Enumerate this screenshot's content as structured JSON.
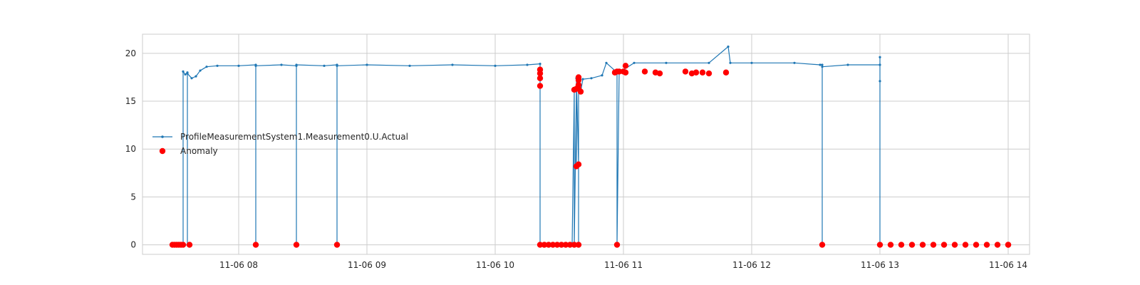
{
  "chart_data": {
    "type": "line",
    "x_axis": {
      "kind": "time",
      "ticks": [
        "2020-11-06T08:00",
        "2020-11-06T09:00",
        "2020-11-06T10:00",
        "2020-11-06T11:00",
        "2020-11-06T12:00",
        "2020-11-06T13:00",
        "2020-11-06T14:00"
      ],
      "tick_labels": [
        "11-06 08",
        "11-06 09",
        "11-06 10",
        "11-06 11",
        "11-06 12",
        "11-06 13",
        "11-06 14"
      ],
      "xlim": [
        "2020-11-06T07:15",
        "2020-11-06T14:10"
      ]
    },
    "y_axis": {
      "ticks": [
        0,
        5,
        10,
        15,
        20
      ],
      "tick_labels": [
        "0",
        "5",
        "10",
        "15",
        "20"
      ],
      "ylim": [
        -1,
        22
      ]
    },
    "grid": true,
    "legend_placement": "center-left",
    "title": "",
    "xlabel": "",
    "ylabel": "",
    "series": [
      {
        "name": "ProfileMeasurementSystem1.Measurement0.U.Actual",
        "type": "line",
        "color": "#1f77b4",
        "marker": "dot",
        "points": [
          [
            "2020-11-06T07:29",
            0
          ],
          [
            "2020-11-06T07:31",
            0
          ],
          [
            "2020-11-06T07:33",
            0
          ],
          [
            "2020-11-06T07:34",
            0
          ],
          [
            "2020-11-06T07:34",
            18.1
          ],
          [
            "2020-11-06T07:35",
            17.8
          ],
          [
            "2020-11-06T07:36",
            18.0
          ],
          [
            "2020-11-06T07:36",
            0
          ],
          [
            "2020-11-06T07:36",
            17.9
          ],
          [
            "2020-11-06T07:38",
            17.4
          ],
          [
            "2020-11-06T07:40",
            17.6
          ],
          [
            "2020-11-06T07:42",
            18.2
          ],
          [
            "2020-11-06T07:45",
            18.6
          ],
          [
            "2020-11-06T07:50",
            18.7
          ],
          [
            "2020-11-06T08:00",
            18.7
          ],
          [
            "2020-11-06T08:08",
            18.8
          ],
          [
            "2020-11-06T08:08",
            0
          ],
          [
            "2020-11-06T08:08",
            18.7
          ],
          [
            "2020-11-06T08:20",
            18.8
          ],
          [
            "2020-11-06T08:27",
            18.7
          ],
          [
            "2020-11-06T08:27",
            0
          ],
          [
            "2020-11-06T08:27",
            18.8
          ],
          [
            "2020-11-06T08:40",
            18.7
          ],
          [
            "2020-11-06T08:46",
            18.8
          ],
          [
            "2020-11-06T08:46",
            0
          ],
          [
            "2020-11-06T08:46",
            18.7
          ],
          [
            "2020-11-06T09:00",
            18.8
          ],
          [
            "2020-11-06T09:20",
            18.7
          ],
          [
            "2020-11-06T09:40",
            18.8
          ],
          [
            "2020-11-06T10:00",
            18.7
          ],
          [
            "2020-11-06T10:15",
            18.8
          ],
          [
            "2020-11-06T10:21",
            18.9
          ],
          [
            "2020-11-06T10:21",
            17.8
          ],
          [
            "2020-11-06T10:21",
            16.6
          ],
          [
            "2020-11-06T10:21",
            0
          ],
          [
            "2020-11-06T10:30",
            0
          ],
          [
            "2020-11-06T10:36",
            0
          ],
          [
            "2020-11-06T10:37",
            16.2
          ],
          [
            "2020-11-06T10:37",
            0
          ],
          [
            "2020-11-06T10:38",
            16.3
          ],
          [
            "2020-11-06T10:38",
            8.1
          ],
          [
            "2020-11-06T10:38",
            17.4
          ],
          [
            "2020-11-06T10:39",
            8.4
          ],
          [
            "2020-11-06T10:39",
            0
          ],
          [
            "2020-11-06T10:39",
            16.1
          ],
          [
            "2020-11-06T10:40",
            16.0
          ],
          [
            "2020-11-06T10:41",
            17.3
          ],
          [
            "2020-11-06T10:45",
            17.4
          ],
          [
            "2020-11-06T10:50",
            17.7
          ],
          [
            "2020-11-06T10:52",
            19.0
          ],
          [
            "2020-11-06T10:57",
            18.0
          ],
          [
            "2020-11-06T10:57",
            0
          ],
          [
            "2020-11-06T10:58",
            18.0
          ],
          [
            "2020-11-06T11:05",
            19.0
          ],
          [
            "2020-11-06T11:20",
            19.0
          ],
          [
            "2020-11-06T11:40",
            19.0
          ],
          [
            "2020-11-06T11:49",
            20.7
          ],
          [
            "2020-11-06T11:50",
            19.0
          ],
          [
            "2020-11-06T12:00",
            19.0
          ],
          [
            "2020-11-06T12:20",
            19.0
          ],
          [
            "2020-11-06T12:32",
            18.8
          ],
          [
            "2020-11-06T12:33",
            18.8
          ],
          [
            "2020-11-06T12:33",
            0
          ],
          [
            "2020-11-06T12:33",
            18.6
          ],
          [
            "2020-11-06T12:45",
            18.8
          ],
          [
            "2020-11-06T13:00",
            18.8
          ],
          [
            "2020-11-06T13:00",
            19.6
          ],
          [
            "2020-11-06T13:00",
            17.1
          ],
          [
            "2020-11-06T13:00",
            0
          ]
        ]
      },
      {
        "name": "Anomaly",
        "type": "scatter",
        "color": "#ff0000",
        "marker": "circle",
        "points": [
          [
            "2020-11-06T07:29",
            0
          ],
          [
            "2020-11-06T07:30",
            0
          ],
          [
            "2020-11-06T07:31",
            0
          ],
          [
            "2020-11-06T07:32",
            0
          ],
          [
            "2020-11-06T07:33",
            0
          ],
          [
            "2020-11-06T07:34",
            0
          ],
          [
            "2020-11-06T07:37",
            0
          ],
          [
            "2020-11-06T08:08",
            0
          ],
          [
            "2020-11-06T08:27",
            0
          ],
          [
            "2020-11-06T08:46",
            0
          ],
          [
            "2020-11-06T10:21",
            18.3
          ],
          [
            "2020-11-06T10:21",
            17.9
          ],
          [
            "2020-11-06T10:21",
            17.4
          ],
          [
            "2020-11-06T10:21",
            16.6
          ],
          [
            "2020-11-06T10:21",
            0
          ],
          [
            "2020-11-06T10:23",
            0
          ],
          [
            "2020-11-06T10:25",
            0
          ],
          [
            "2020-11-06T10:27",
            0
          ],
          [
            "2020-11-06T10:29",
            0
          ],
          [
            "2020-11-06T10:31",
            0
          ],
          [
            "2020-11-06T10:33",
            0
          ],
          [
            "2020-11-06T10:35",
            0
          ],
          [
            "2020-11-06T10:37",
            0
          ],
          [
            "2020-11-06T10:37",
            16.2
          ],
          [
            "2020-11-06T10:38",
            16.3
          ],
          [
            "2020-11-06T10:38",
            8.2
          ],
          [
            "2020-11-06T10:39",
            8.4
          ],
          [
            "2020-11-06T10:39",
            17.2
          ],
          [
            "2020-11-06T10:39",
            17.5
          ],
          [
            "2020-11-06T10:39",
            16.7
          ],
          [
            "2020-11-06T10:39",
            16.3
          ],
          [
            "2020-11-06T10:40",
            16.0
          ],
          [
            "2020-11-06T10:39",
            0
          ],
          [
            "2020-11-06T10:56",
            18.0
          ],
          [
            "2020-11-06T10:57",
            18.1
          ],
          [
            "2020-11-06T10:57",
            0
          ],
          [
            "2020-11-06T10:58",
            18.1
          ],
          [
            "2020-11-06T11:00",
            18.1
          ],
          [
            "2020-11-06T11:01",
            18.7
          ],
          [
            "2020-11-06T11:01",
            18.0
          ],
          [
            "2020-11-06T11:10",
            18.1
          ],
          [
            "2020-11-06T11:15",
            18.0
          ],
          [
            "2020-11-06T11:17",
            17.9
          ],
          [
            "2020-11-06T11:29",
            18.1
          ],
          [
            "2020-11-06T11:32",
            17.9
          ],
          [
            "2020-11-06T11:34",
            18.0
          ],
          [
            "2020-11-06T11:37",
            18.0
          ],
          [
            "2020-11-06T11:40",
            17.9
          ],
          [
            "2020-11-06T11:48",
            18.0
          ],
          [
            "2020-11-06T12:33",
            0
          ],
          [
            "2020-11-06T13:00",
            0
          ],
          [
            "2020-11-06T13:05",
            0
          ],
          [
            "2020-11-06T13:10",
            0
          ],
          [
            "2020-11-06T13:15",
            0
          ],
          [
            "2020-11-06T13:20",
            0
          ],
          [
            "2020-11-06T13:25",
            0
          ],
          [
            "2020-11-06T13:30",
            0
          ],
          [
            "2020-11-06T13:35",
            0
          ],
          [
            "2020-11-06T13:40",
            0
          ],
          [
            "2020-11-06T13:45",
            0
          ],
          [
            "2020-11-06T13:50",
            0
          ],
          [
            "2020-11-06T13:55",
            0
          ],
          [
            "2020-11-06T14:00",
            0
          ],
          [
            "2020-11-06T14:00",
            0
          ]
        ]
      }
    ]
  }
}
